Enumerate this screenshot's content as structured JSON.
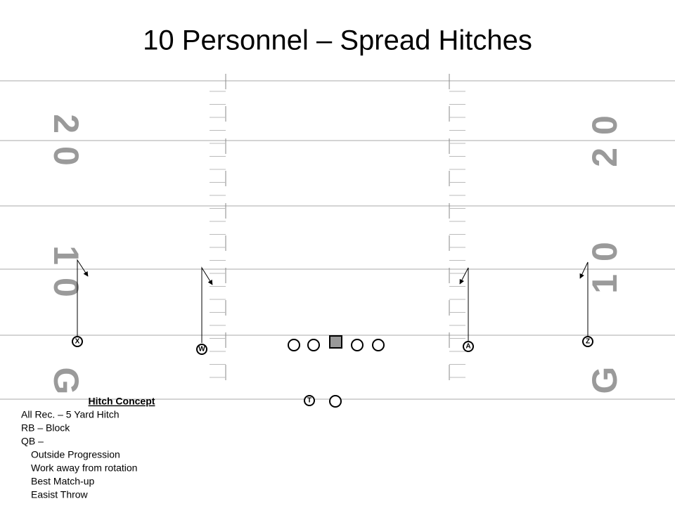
{
  "title": "10 Personnel – Spread Hitches",
  "yard_numbers": {
    "left": [
      "2 0",
      "1 0",
      "G"
    ],
    "right": [
      "2 0",
      "1 0",
      "G"
    ]
  },
  "players": {
    "x": "X",
    "w": "W",
    "a": "A",
    "z": "Z",
    "t": "T"
  },
  "notes": {
    "heading": "Hitch Concept",
    "lines": [
      "All Rec. – 5 Yard Hitch",
      "RB – Block",
      "QB –"
    ],
    "qb_items": [
      "Outside Progression",
      "Work away from rotation",
      "Best Match-up",
      "Easist Throw"
    ]
  }
}
